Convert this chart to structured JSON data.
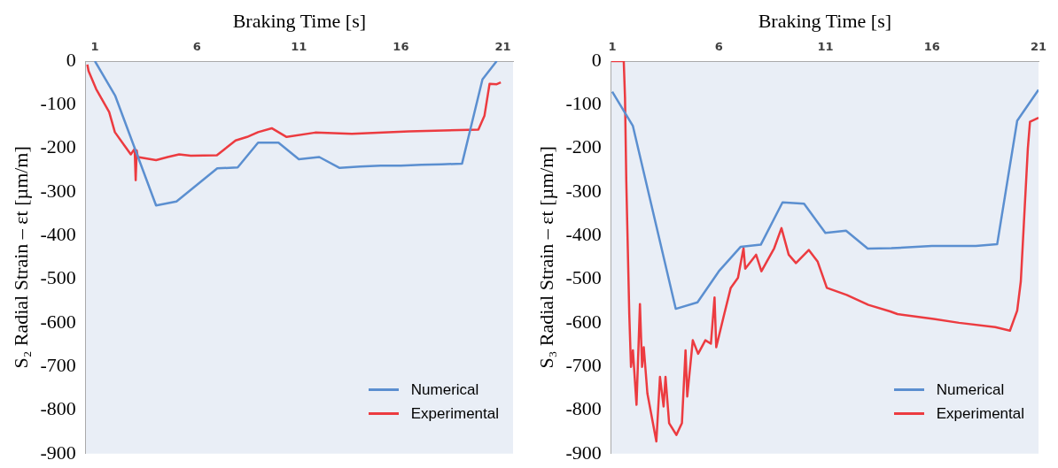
{
  "chart_data": [
    {
      "type": "line",
      "xlabel": "Braking Time [s]",
      "ylabel": "S₂ Radial Strain – εt [µm/m]",
      "xlim": [
        0.55,
        21.5
      ],
      "xticks": [
        1,
        6,
        11,
        16,
        21
      ],
      "ylim": [
        -900,
        0
      ],
      "yticks": [
        -900,
        -800,
        -700,
        -600,
        -500,
        -400,
        -300,
        -200,
        -100,
        0
      ],
      "grid": false,
      "legend": "bottom right",
      "series": [
        {
          "name": "Numerical",
          "color": "#5b8fd0",
          "x": [
            1,
            2,
            4,
            5,
            7,
            8,
            9,
            10,
            11,
            12,
            13,
            14,
            15,
            16,
            17,
            18,
            19,
            20,
            20.7
          ],
          "values": [
            0,
            -80,
            -331,
            -322,
            -246,
            -244,
            -187,
            -187,
            -225,
            -220,
            -245,
            -242,
            -240,
            -240,
            -238,
            -237,
            -235,
            -42,
            0
          ]
        },
        {
          "name": "Experimental",
          "color": "#ec3b40",
          "x": [
            0.63,
            0.69,
            1.06,
            1.7,
            1.98,
            2.44,
            2.76,
            2.95,
            3.0,
            3.05,
            3.1,
            4.0,
            4.57,
            5.13,
            5.7,
            6.98,
            7.9,
            8.46,
            9.0,
            9.67,
            10.4,
            11.8,
            13.6,
            16.4,
            19.8,
            20.1,
            20.35,
            20.7,
            20.9
          ],
          "values": [
            -8,
            -23,
            -64,
            -117,
            -163,
            -193,
            -214,
            -201,
            -273,
            -205,
            -220,
            -227,
            -220,
            -214,
            -217,
            -216,
            -182,
            -174,
            -163,
            -154,
            -174,
            -164,
            -167,
            -161,
            -157,
            -125,
            -52,
            -53,
            -49
          ]
        }
      ]
    },
    {
      "type": "line",
      "xlabel": "Braking Time [s]",
      "ylabel": "S₃ Radial Strain – εt [µm/m]",
      "xlim": [
        0.95,
        21
      ],
      "xticks": [
        1,
        6,
        11,
        16,
        21
      ],
      "ylim": [
        -900,
        0
      ],
      "yticks": [
        -900,
        -800,
        -700,
        -600,
        -500,
        -400,
        -300,
        -200,
        -100,
        0
      ],
      "grid": false,
      "legend": "bottom right",
      "series": [
        {
          "name": "Numerical",
          "color": "#5b8fd0",
          "x": [
            1,
            1.97,
            3.98,
            5,
            6,
            7.02,
            7.97,
            8.99,
            10,
            11,
            11.97,
            12.99,
            14.1,
            16,
            18.06,
            19.06,
            20,
            21
          ],
          "values": [
            -70,
            -149,
            -568,
            -553,
            -482,
            -426,
            -421,
            -324,
            -327,
            -394,
            -389,
            -430,
            -429,
            -424,
            -424,
            -420,
            -137,
            -66
          ]
        },
        {
          "name": "Experimental",
          "color": "#ec3b40",
          "x": [
            0.95,
            1.54,
            1.6,
            1.66,
            1.8,
            1.88,
            1.97,
            2.14,
            2.3,
            2.4,
            2.48,
            2.65,
            3.07,
            3.24,
            3.41,
            3.5,
            3.67,
            4.01,
            4.27,
            4.44,
            4.52,
            4.78,
            5.03,
            5.37,
            5.63,
            5.8,
            5.88,
            6.22,
            6.56,
            6.9,
            7.16,
            7.24,
            7.75,
            8.0,
            8.6,
            8.94,
            9.28,
            9.62,
            10.22,
            10.64,
            11.07,
            12.0,
            13.02,
            14.04,
            14.38,
            16.08,
            17.27,
            18.97,
            19.66,
            20.0,
            20.17,
            20.5,
            20.6,
            21.0
          ],
          "values": [
            0,
            0,
            -85,
            -276,
            -580,
            -701,
            -663,
            -788,
            -557,
            -701,
            -656,
            -762,
            -872,
            -724,
            -792,
            -724,
            -830,
            -857,
            -830,
            -663,
            -769,
            -640,
            -671,
            -640,
            -648,
            -542,
            -656,
            -587,
            -520,
            -497,
            -429,
            -476,
            -444,
            -482,
            -429,
            -383,
            -444,
            -463,
            -433,
            -460,
            -520,
            -536,
            -559,
            -574,
            -580,
            -591,
            -600,
            -610,
            -618,
            -572,
            -505,
            -200,
            -139,
            -130
          ]
        }
      ]
    }
  ]
}
